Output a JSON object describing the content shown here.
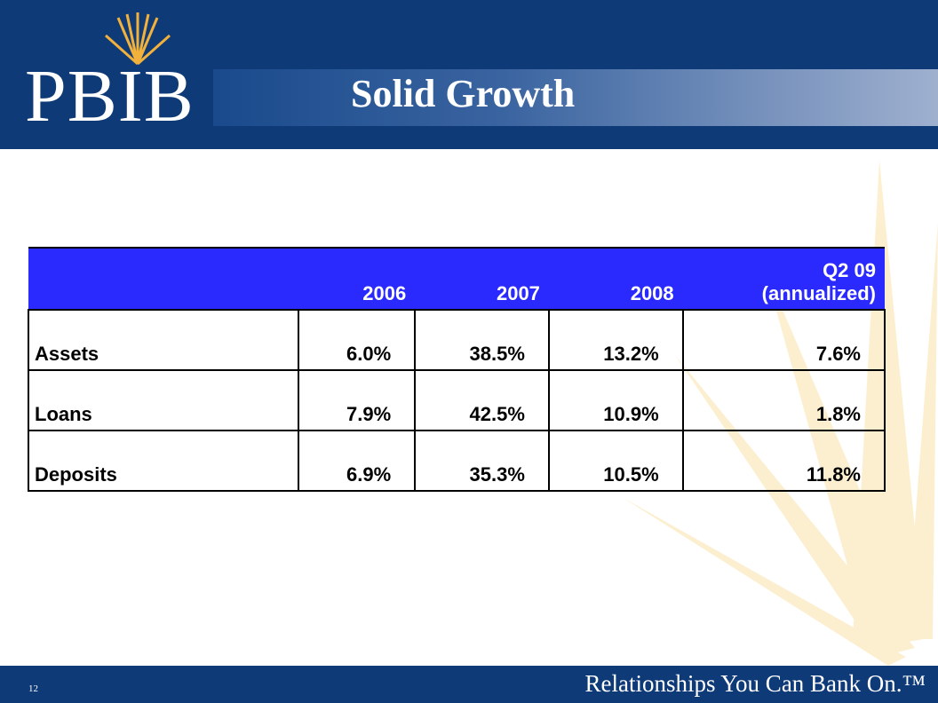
{
  "header": {
    "logo": "PBIB",
    "title": "Solid Growth"
  },
  "table": {
    "columns": [
      [
        "2006"
      ],
      [
        "2007"
      ],
      [
        "2008"
      ],
      [
        "Q2 09",
        "(annualized)"
      ]
    ],
    "rows": [
      {
        "label": "Assets",
        "values": [
          "6.0%",
          "38.5%",
          "13.2%",
          "7.6%"
        ]
      },
      {
        "label": "Loans",
        "values": [
          "7.9%",
          "42.5%",
          "10.9%",
          "1.8%"
        ]
      },
      {
        "label": "Deposits",
        "values": [
          "6.9%",
          "35.3%",
          "10.5%",
          "11.8%"
        ]
      }
    ]
  },
  "footer": {
    "page": "12",
    "tagline": "Relationships You Can Bank On.™"
  }
}
